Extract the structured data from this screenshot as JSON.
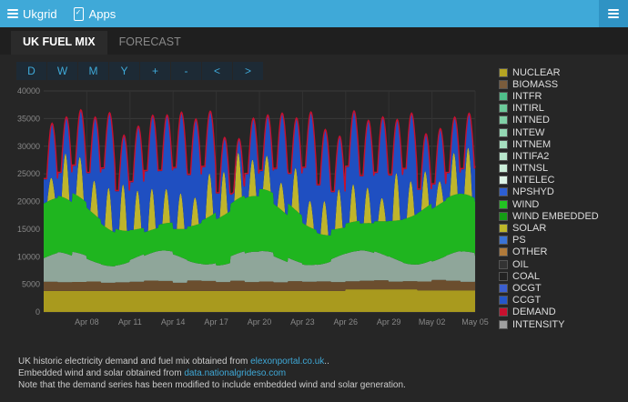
{
  "header": {
    "brand": "Ukgrid",
    "apps": "Apps"
  },
  "tabs": [
    {
      "label": "UK FUEL MIX",
      "active": true
    },
    {
      "label": "FORECAST",
      "active": false
    }
  ],
  "range_buttons": [
    "D",
    "W",
    "M",
    "Y",
    "+",
    "-",
    "<",
    ">"
  ],
  "legend": [
    {
      "label": "NUCLEAR",
      "color": "#b5a422"
    },
    {
      "label": "BIOMASS",
      "color": "#7a5c3c"
    },
    {
      "label": "INTFR",
      "color": "#4fbf8a"
    },
    {
      "label": "INTIRL",
      "color": "#6cc99a"
    },
    {
      "label": "INTNED",
      "color": "#80d0a6"
    },
    {
      "label": "INTEW",
      "color": "#94d8b4"
    },
    {
      "label": "INTNEM",
      "color": "#a6dfc0"
    },
    {
      "label": "INTIFA2",
      "color": "#b8e6cc"
    },
    {
      "label": "INTNSL",
      "color": "#cbeed9"
    },
    {
      "label": "INTELEC",
      "color": "#ddf4e6"
    },
    {
      "label": "NPSHYD",
      "color": "#2d5fd3"
    },
    {
      "label": "WIND",
      "color": "#22c322"
    },
    {
      "label": "WIND EMBEDDED",
      "color": "#159c15"
    },
    {
      "label": "SOLAR",
      "color": "#bdb62a"
    },
    {
      "label": "PS",
      "color": "#3a74d6"
    },
    {
      "label": "OTHER",
      "color": "#b07a3a"
    },
    {
      "label": "OIL",
      "color": "#333333"
    },
    {
      "label": "COAL",
      "color": "#222222"
    },
    {
      "label": "OCGT",
      "color": "#3b5fd0"
    },
    {
      "label": "CCGT",
      "color": "#2457c9"
    },
    {
      "label": "DEMAND",
      "color": "#c8102e"
    },
    {
      "label": "INTENSITY",
      "color": "#a0a0a0"
    }
  ],
  "footer": {
    "line1_text": "UK historic electricity demand and fuel mix obtained from ",
    "line1_link": "elexonportal.co.uk",
    "line1_end": "..",
    "line2_text": "Embedded wind and solar obtained from ",
    "line2_link": "data.nationalgrideso.com",
    "line3_text": "Note that the demand series has been modified to include embedded wind and solar generation."
  },
  "chart_data": {
    "type": "area",
    "stacked": true,
    "ylim": [
      0,
      40000
    ],
    "yticks": [
      0,
      5000,
      10000,
      15000,
      20000,
      25000,
      30000,
      35000,
      40000
    ],
    "xticks": [
      "Apr 08",
      "Apr 11",
      "Apr 14",
      "Apr 17",
      "Apr 20",
      "Apr 23",
      "Apr 26",
      "Apr 29",
      "May 02",
      "May 05"
    ],
    "x_range_days": [
      "Apr 05",
      "May 05"
    ],
    "grid": true,
    "legend_position": "right",
    "series_approx_mw": {
      "NUCLEAR": [
        3800,
        4200
      ],
      "BIOMASS": [
        1200,
        2000
      ],
      "INTERCONNECTORS": [
        2500,
        5000
      ],
      "WIND": [
        2000,
        12000
      ],
      "SOLAR": [
        0,
        9000
      ],
      "CCGT": [
        3000,
        12000
      ],
      "DEMAND": [
        22000,
        38000
      ]
    }
  }
}
